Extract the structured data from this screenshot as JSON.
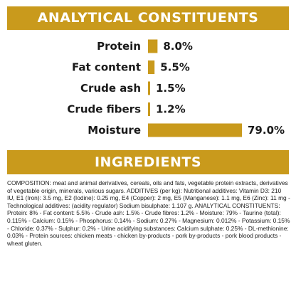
{
  "analytical_title": "ANALYTICAL CONSTITUENTS",
  "ingredients_title": "INGREDIENTS",
  "chart_data": {
    "type": "bar",
    "orientation": "horizontal",
    "title": "ANALYTICAL CONSTITUENTS",
    "categories": [
      "Protein",
      "Fat content",
      "Crude ash",
      "Crude fibers",
      "Moisture"
    ],
    "values": [
      8.0,
      5.5,
      1.5,
      1.2,
      79.0
    ],
    "value_labels": [
      "8.0%",
      "5.5%",
      "1.5%",
      "1.2%",
      "79.0%"
    ],
    "unit": "%",
    "grid": false,
    "legend": "none",
    "bar_color": "#c99a1c"
  },
  "ingredients": "COMPOSITION: meat and animal derivatives, cereals, oils and fats, vegetable protein extracts, derivatives of vegetable origin, minerals, various sugars. ADDITIVES (per kg): Nutritional additives: Vitamin D3: 210 IU, E1 (Iron): 3.5 mg, E2 (Iodine): 0.25 mg, E4 (Copper): 2 mg, E5 (Manganese): 1.1 mg, E6 (Zinc): 11 mg - Technological additives: (acidity regulator) Sodium bisulphate: 1.107 g. ANALYTICAL CONSTITUENTS: Protein: 8% - Fat content: 5.5% - Crude ash: 1.5% - Crude fibres: 1.2% - Moisture: 79% - Taurine (total): 0.115% - Calcium: 0.15% - Phosphorus: 0.14% - Sodium: 0.27% - Magnesium: 0.012% - Potassium: 0.15% - Chloride: 0.37% - Sulphur: 0.2% - Urine acidifying substances: Calcium sulphate: 0.25% - DL-methionine: 0.03% - Protein sources: chicken meats - chicken by-products - pork by-products - pork blood products - wheat gluten.",
  "colors": {
    "accent": "#c99a1c",
    "text": "#1a1a1a",
    "background": "#ffffff"
  }
}
